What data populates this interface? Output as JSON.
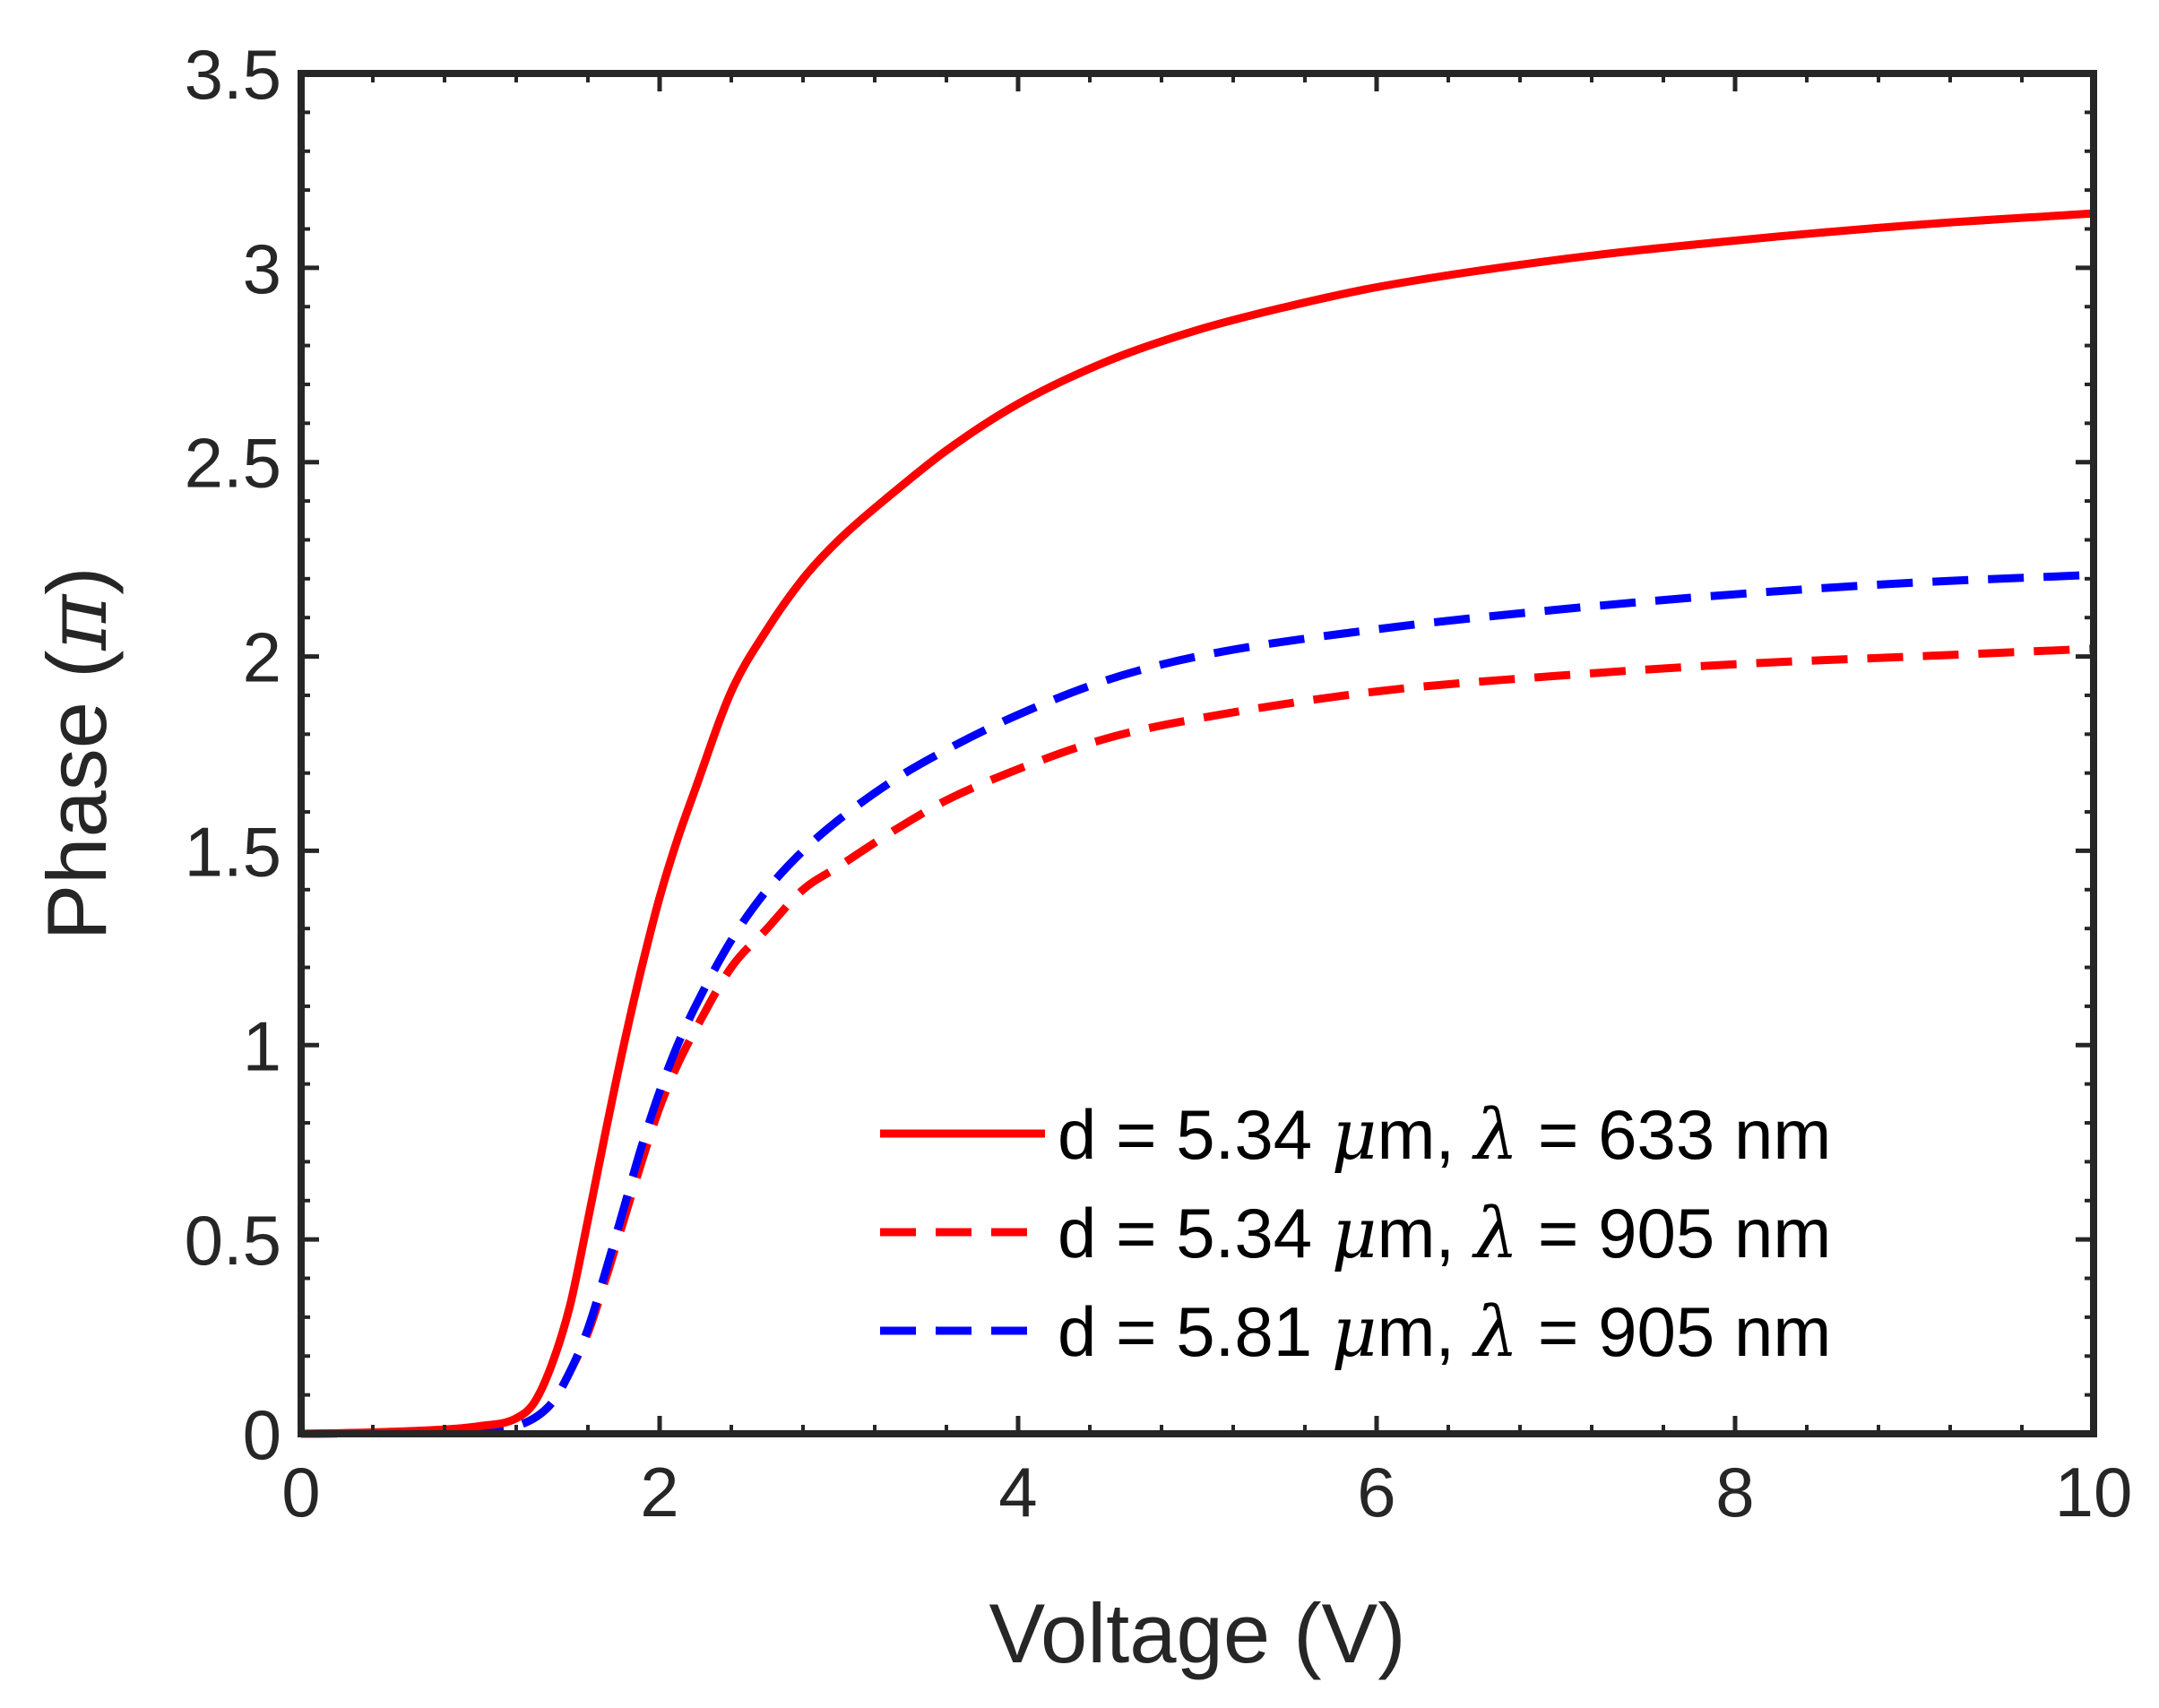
{
  "chart_data": {
    "type": "line",
    "title": "",
    "xlabel": "Voltage (V)",
    "ylabel_main": "Phase (",
    "ylabel_symbol": "π",
    "ylabel_end": ")",
    "xlim": [
      0,
      10
    ],
    "ylim": [
      0,
      3.5
    ],
    "xticks": [
      0,
      2,
      4,
      6,
      8,
      10
    ],
    "xtick_labels": [
      "0",
      "2",
      "4",
      "6",
      "8",
      "10"
    ],
    "yticks": [
      0,
      0.5,
      1,
      1.5,
      2,
      2.5,
      3,
      3.5
    ],
    "ytick_labels": [
      "0",
      "0.5",
      "1",
      "1.5",
      "2",
      "2.5",
      "3",
      "3.5"
    ],
    "legend_position": "bottom-right",
    "series": [
      {
        "name": "d = 5.34 μm, λ = 633 nm",
        "legend_prefix": "d = 5.34 ",
        "legend_mu": "μ",
        "legend_mid": "m, ",
        "legend_lambda": "λ",
        "legend_suffix": " = 633 nm",
        "color": "#ff0000",
        "dash": "solid",
        "x": [
          0,
          0.5,
          1.0,
          1.2,
          1.3,
          1.4,
          1.5,
          1.6,
          1.7,
          1.8,
          1.9,
          2.0,
          2.1,
          2.2,
          2.4,
          2.6,
          2.8,
          3.0,
          3.3,
          3.6,
          4.0,
          4.5,
          5.0,
          5.5,
          6.0,
          7.0,
          8.0,
          9.0,
          10.0
        ],
        "values": [
          0,
          0.005,
          0.02,
          0.04,
          0.08,
          0.18,
          0.33,
          0.55,
          0.78,
          1.0,
          1.2,
          1.38,
          1.53,
          1.66,
          1.91,
          2.07,
          2.2,
          2.3,
          2.42,
          2.53,
          2.65,
          2.76,
          2.84,
          2.9,
          2.95,
          3.02,
          3.07,
          3.11,
          3.14
        ]
      },
      {
        "name": "d = 5.34 μm, λ = 905 nm",
        "legend_prefix": "d = 5.34 ",
        "legend_mu": "μ",
        "legend_mid": "m, ",
        "legend_lambda": "λ",
        "legend_suffix": " = 905 nm",
        "color": "#ff0000",
        "dash": "dashed",
        "x": [
          0,
          0.5,
          1.0,
          1.2,
          1.4,
          1.5,
          1.6,
          1.7,
          1.8,
          1.9,
          2.0,
          2.1,
          2.2,
          2.4,
          2.6,
          2.8,
          3.0,
          3.3,
          3.6,
          4.0,
          4.5,
          5.0,
          6.0,
          7.0,
          8.0,
          9.0,
          10.0
        ],
        "values": [
          0,
          0.003,
          0.01,
          0.02,
          0.08,
          0.16,
          0.26,
          0.4,
          0.55,
          0.7,
          0.84,
          0.95,
          1.04,
          1.2,
          1.3,
          1.4,
          1.46,
          1.55,
          1.63,
          1.71,
          1.79,
          1.84,
          1.91,
          1.95,
          1.98,
          2.0,
          2.02
        ]
      },
      {
        "name": "d = 5.81 μm, λ = 905 nm",
        "legend_prefix": "d = 5.81 ",
        "legend_mu": "μ",
        "legend_mid": "m, ",
        "legend_lambda": "λ",
        "legend_suffix": " = 905 nm",
        "color": "#0000ff",
        "dash": "dashed",
        "x": [
          0,
          0.5,
          1.0,
          1.2,
          1.4,
          1.5,
          1.6,
          1.7,
          1.8,
          1.9,
          2.0,
          2.1,
          2.2,
          2.4,
          2.6,
          2.8,
          3.0,
          3.3,
          3.6,
          4.0,
          4.5,
          5.0,
          6.0,
          7.0,
          8.0,
          9.0,
          10.0
        ],
        "values": [
          0,
          0.003,
          0.01,
          0.02,
          0.08,
          0.16,
          0.27,
          0.42,
          0.58,
          0.74,
          0.88,
          1.0,
          1.1,
          1.27,
          1.4,
          1.5,
          1.58,
          1.68,
          1.76,
          1.85,
          1.94,
          2.0,
          2.07,
          2.12,
          2.16,
          2.19,
          2.21
        ]
      }
    ]
  }
}
